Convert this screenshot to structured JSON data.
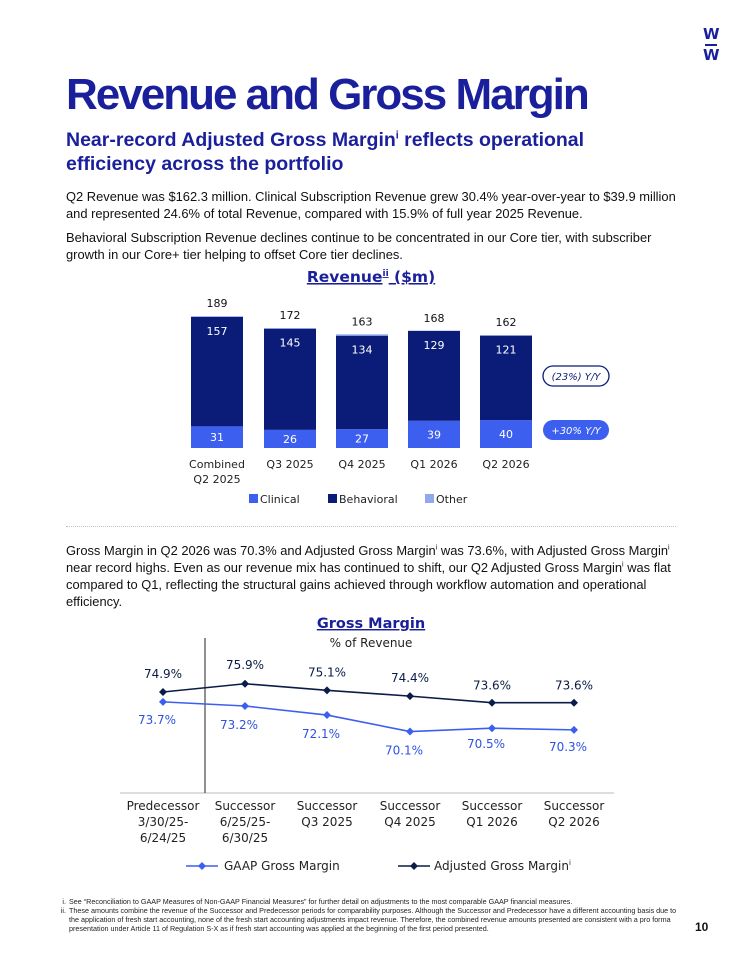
{
  "logo": {
    "line1": "W",
    "line2": "W"
  },
  "title": "Revenue and Gross Margin",
  "subtitle": {
    "text": "Near-record Adjusted Gross Margin",
    "sup": "i",
    "rest": " reflects operational efficiency across the portfolio"
  },
  "paragraphs": {
    "p1": "Q2 Revenue was $162.3 million. Clinical Subscription Revenue grew 30.4% year-over-year to $39.9 million and represented 24.6% of total Revenue, compared with 15.9% of full year 2025 Revenue.",
    "p2": "Behavioral Subscription Revenue declines continue to be concentrated in our Core tier, with subscriber growth in our Core+ tier helping to offset Core tier declines.",
    "p3": {
      "t1": "Gross Margin in Q2 2026 was 70.3% and Adjusted Gross Margin",
      "s1": "i",
      "t2": " was 73.6%, with Adjusted Gross Margin",
      "s2": "i",
      "t3": " near record highs. Even as our revenue mix has continued to shift, our Q2 Adjusted Gross Margin",
      "s3": "i",
      "t4": " was flat compared to Q1, reflecting the structural gains achieved through workflow automation and operational efficiency."
    }
  },
  "chart_data": [
    {
      "type": "bar",
      "stacked": true,
      "title": "Revenue",
      "title_sup": "ii",
      "title_unit": " ($m)",
      "categories": [
        [
          "Combined",
          "Q2 2025"
        ],
        [
          "Q3 2025"
        ],
        [
          "Q4 2025"
        ],
        [
          "Q1 2026"
        ],
        [
          "Q2 2026"
        ]
      ],
      "series": [
        {
          "name": "Clinical",
          "values": [
            31,
            26,
            27,
            39,
            40
          ],
          "color": "#3d5ff0"
        },
        {
          "name": "Behavioral",
          "values": [
            157,
            145,
            134,
            129,
            121
          ],
          "color": "#0b1c78"
        },
        {
          "name": "Other",
          "values": [
            1,
            1,
            2,
            0,
            1
          ],
          "color": "#8fa8ee"
        }
      ],
      "totals": [
        189,
        172,
        163,
        168,
        162
      ],
      "annotations": [
        {
          "text": "(23%) Y/Y",
          "style": "outline"
        },
        {
          "text": "+30% Y/Y",
          "style": "filled"
        }
      ],
      "legend": "bottom",
      "ylim": [
        0,
        195
      ]
    },
    {
      "type": "line",
      "title": "Gross Margin",
      "subtitle": "% of Revenue",
      "categories": [
        [
          "Predecessor",
          "3/30/25-",
          "6/24/25"
        ],
        [
          "Successor",
          "6/25/25-",
          "6/30/25"
        ],
        [
          "Successor",
          "Q3 2025"
        ],
        [
          "Successor",
          "Q4 2025"
        ],
        [
          "Successor",
          "Q1 2026"
        ],
        [
          "Successor",
          "Q2 2026"
        ]
      ],
      "series": [
        {
          "name": "GAAP Gross Margin",
          "values": [
            73.7,
            73.2,
            72.1,
            70.1,
            70.5,
            70.3
          ],
          "labels": [
            "73.7%",
            "73.2%",
            "72.1%",
            "70.1%",
            "70.5%",
            "70.3%"
          ],
          "color": "#3d5ff0"
        },
        {
          "name": "Adjusted Gross Margin",
          "name_sup": "i",
          "values": [
            74.9,
            75.9,
            75.1,
            74.4,
            73.6,
            73.6
          ],
          "labels": [
            "74.9%",
            "75.9%",
            "75.1%",
            "74.4%",
            "73.6%",
            "73.6%"
          ],
          "color": "#0b1c46"
        }
      ],
      "ylim": [
        63,
        80
      ],
      "legend": "bottom",
      "divider_after_category": 0
    }
  ],
  "footnotes": [
    {
      "mark": "i.",
      "text": "See “Reconciliation to GAAP Measures of Non-GAAP Financial Measures” for further detail on adjustments to the most comparable GAAP financial measures."
    },
    {
      "mark": "ii.",
      "text": "These amounts combine the revenue of the Successor and Predecessor periods for comparability purposes. Although the Successor and Predecessor have a different accounting basis due to the application of fresh start accounting, none of the fresh start accounting adjustments impact revenue. Therefore, the combined revenue amounts presented are consistent with a pro forma presentation under Article 11 of Regulation S-X as if fresh start accounting was applied at the beginning of the first period presented."
    }
  ],
  "page_number": "10",
  "colors": {
    "brand": "#1a1f9c",
    "clinical": "#3d5ff0",
    "behavioral": "#0b1c78",
    "other": "#8fa8ee"
  }
}
